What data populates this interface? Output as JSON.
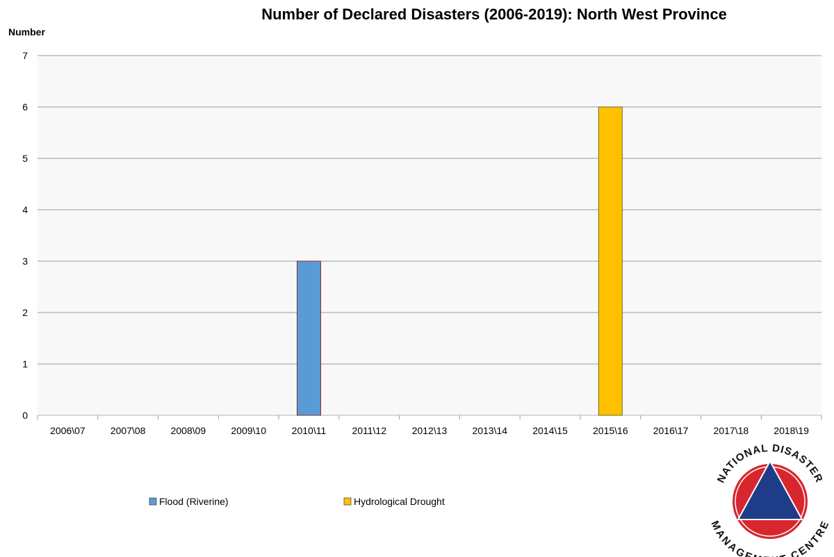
{
  "chart_data": {
    "type": "bar",
    "title": "Number of Declared Disasters (2006-2019): North West Province",
    "ylabel": "Number",
    "xlabel": "",
    "categories": [
      "2006\\07",
      "2007\\08",
      "2008\\09",
      "2009\\10",
      "2010\\11",
      "2011\\12",
      "2012\\13",
      "2013\\14",
      "2014\\15",
      "2015\\16",
      "2016\\17",
      "2017\\18",
      "2018\\19"
    ],
    "series": [
      {
        "name": "Flood (Riverine)",
        "color": "#5b9bd5",
        "values": [
          0,
          0,
          0,
          0,
          3,
          0,
          0,
          0,
          0,
          0,
          0,
          0,
          0
        ]
      },
      {
        "name": "Hydrological Drought",
        "color": "#ffc000",
        "values": [
          0,
          0,
          0,
          0,
          0,
          0,
          0,
          0,
          0,
          6,
          0,
          0,
          0
        ]
      }
    ],
    "ylim": [
      0,
      7
    ],
    "yticks": [
      "0",
      "1",
      "2",
      "3",
      "4",
      "5",
      "6",
      "7"
    ],
    "grid": true,
    "legend": "bottom-left"
  },
  "logo": {
    "top_text": "NATIONAL DISASTER",
    "bottom_text": "MANAGEMENT CENTRE",
    "ring_color": "#d7262e",
    "triangle_color": "#1f3c88"
  }
}
